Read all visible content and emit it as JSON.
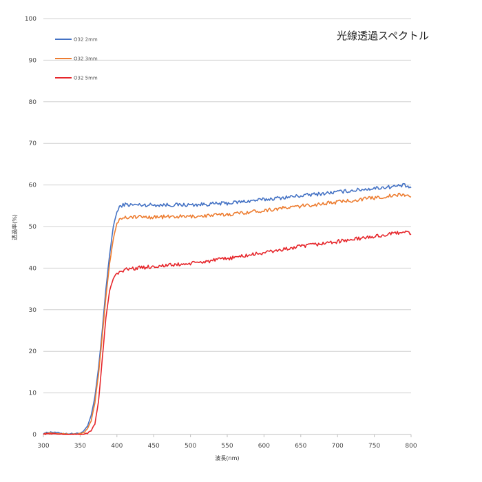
{
  "chart_data": {
    "type": "line",
    "title": "光線透過スペクトル",
    "xlabel": "波長(nm)",
    "ylabel": "透過率(%)",
    "xlim": [
      300,
      800
    ],
    "ylim": [
      0,
      100
    ],
    "x_ticks": [
      300,
      350,
      400,
      450,
      500,
      550,
      600,
      650,
      700,
      750,
      800
    ],
    "y_ticks": [
      0,
      10,
      20,
      30,
      40,
      50,
      60,
      70,
      80,
      90,
      100
    ],
    "grid": true,
    "legend_position": "top-left",
    "x": [
      300,
      310,
      320,
      330,
      340,
      350,
      355,
      360,
      365,
      370,
      375,
      380,
      385,
      390,
      395,
      400,
      405,
      410,
      420,
      450,
      500,
      550,
      600,
      650,
      700,
      750,
      780,
      790,
      800
    ],
    "series": [
      {
        "name": "O32 2mm",
        "color": "#4472C4",
        "values": [
          0.3,
          0.6,
          0.4,
          0.2,
          0.2,
          0.3,
          0.8,
          2,
          4.5,
          9,
          16,
          25,
          35,
          43,
          50,
          53.5,
          55,
          55.3,
          55.2,
          55.2,
          55.2,
          55.6,
          56.5,
          57.4,
          58.3,
          59.2,
          59.7,
          59.9,
          59.3
        ]
      },
      {
        "name": "O32 3mm",
        "color": "#ED7D31",
        "values": [
          0.2,
          0.4,
          0.3,
          0.1,
          0.1,
          0.2,
          0.5,
          1.3,
          3.3,
          7.5,
          14.5,
          23.5,
          33,
          41,
          47,
          50.8,
          52,
          52.2,
          52.3,
          52.3,
          52.4,
          52.9,
          53.9,
          54.9,
          55.9,
          56.9,
          57.5,
          57.7,
          57.1
        ]
      },
      {
        "name": "O32 5mm",
        "color": "#E6262B",
        "values": [
          0.1,
          0.2,
          0.1,
          0.0,
          0.0,
          0.0,
          0.1,
          0.3,
          0.9,
          2.5,
          8,
          18,
          28,
          34.5,
          37.5,
          38.8,
          39.3,
          39.6,
          39.9,
          40.4,
          41.1,
          42.3,
          43.7,
          45.2,
          46.4,
          47.6,
          48.4,
          48.9,
          48.2
        ]
      }
    ]
  }
}
